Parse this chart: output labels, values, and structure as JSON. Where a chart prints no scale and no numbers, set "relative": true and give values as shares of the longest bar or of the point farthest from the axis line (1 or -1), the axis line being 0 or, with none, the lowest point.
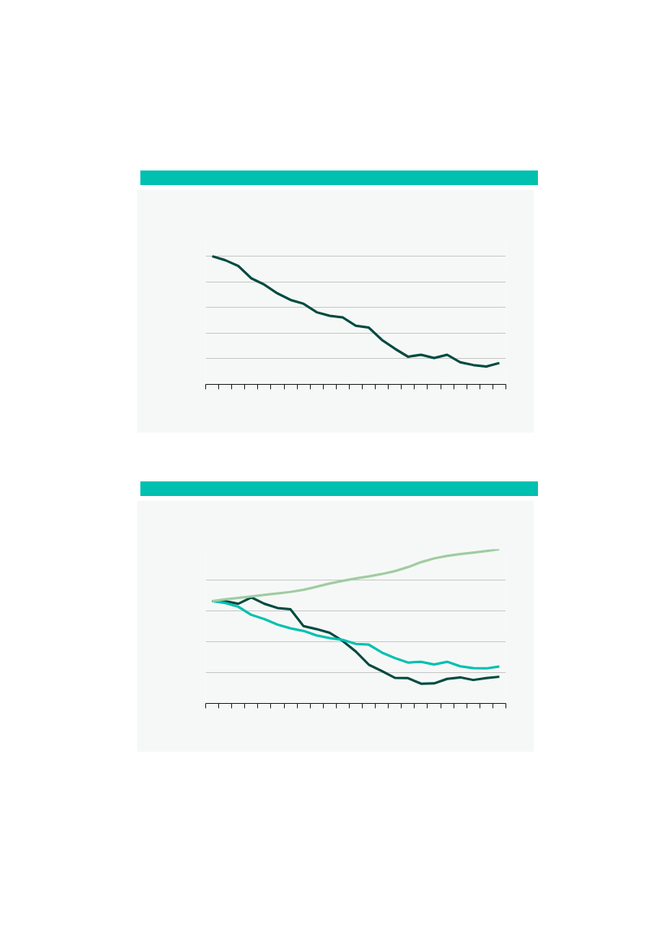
{
  "chart_data": [
    {
      "type": "line",
      "relative": true,
      "grid": "y",
      "categories": [
        null,
        null,
        null,
        null,
        null,
        null,
        null,
        null,
        null,
        null,
        null,
        null,
        null,
        null,
        null,
        null,
        null,
        null,
        null,
        null,
        null,
        null,
        null
      ],
      "series": [
        {
          "color": "#004a40",
          "values": [
            1.0,
            0.969,
            0.924,
            0.827,
            0.778,
            0.71,
            0.659,
            0.629,
            0.563,
            0.535,
            0.522,
            0.457,
            0.443,
            0.347,
            0.278,
            0.216,
            0.231,
            0.206,
            0.231,
            0.173,
            0.151,
            0.139,
            0.167
          ]
        }
      ]
    },
    {
      "type": "line",
      "relative": true,
      "grid": "y",
      "categories": [
        null,
        null,
        null,
        null,
        null,
        null,
        null,
        null,
        null,
        null,
        null,
        null,
        null,
        null,
        null,
        null,
        null,
        null,
        null,
        null,
        null,
        null,
        null
      ],
      "series": [
        {
          "color": "#004a40",
          "values": [
            0.663,
            0.663,
            0.646,
            0.687,
            0.646,
            0.619,
            0.61,
            0.501,
            0.482,
            0.458,
            0.405,
            0.337,
            0.251,
            0.21,
            0.166,
            0.164,
            0.128,
            0.13,
            0.159,
            0.169,
            0.152,
            0.164,
            0.173
          ]
        },
        {
          "color": "#00c0b0",
          "values": [
            0.663,
            0.651,
            0.627,
            0.574,
            0.547,
            0.511,
            0.487,
            0.47,
            0.441,
            0.424,
            0.412,
            0.386,
            0.381,
            0.33,
            0.294,
            0.265,
            0.27,
            0.253,
            0.27,
            0.241,
            0.229,
            0.227,
            0.239
          ]
        },
        {
          "color": "#9fcca0",
          "values": [
            0.663,
            0.675,
            0.684,
            0.694,
            0.704,
            0.713,
            0.723,
            0.737,
            0.757,
            0.778,
            0.795,
            0.81,
            0.824,
            0.839,
            0.858,
            0.884,
            0.916,
            0.94,
            0.957,
            0.969,
            0.978,
            0.988,
            1.0
          ]
        }
      ]
    }
  ]
}
